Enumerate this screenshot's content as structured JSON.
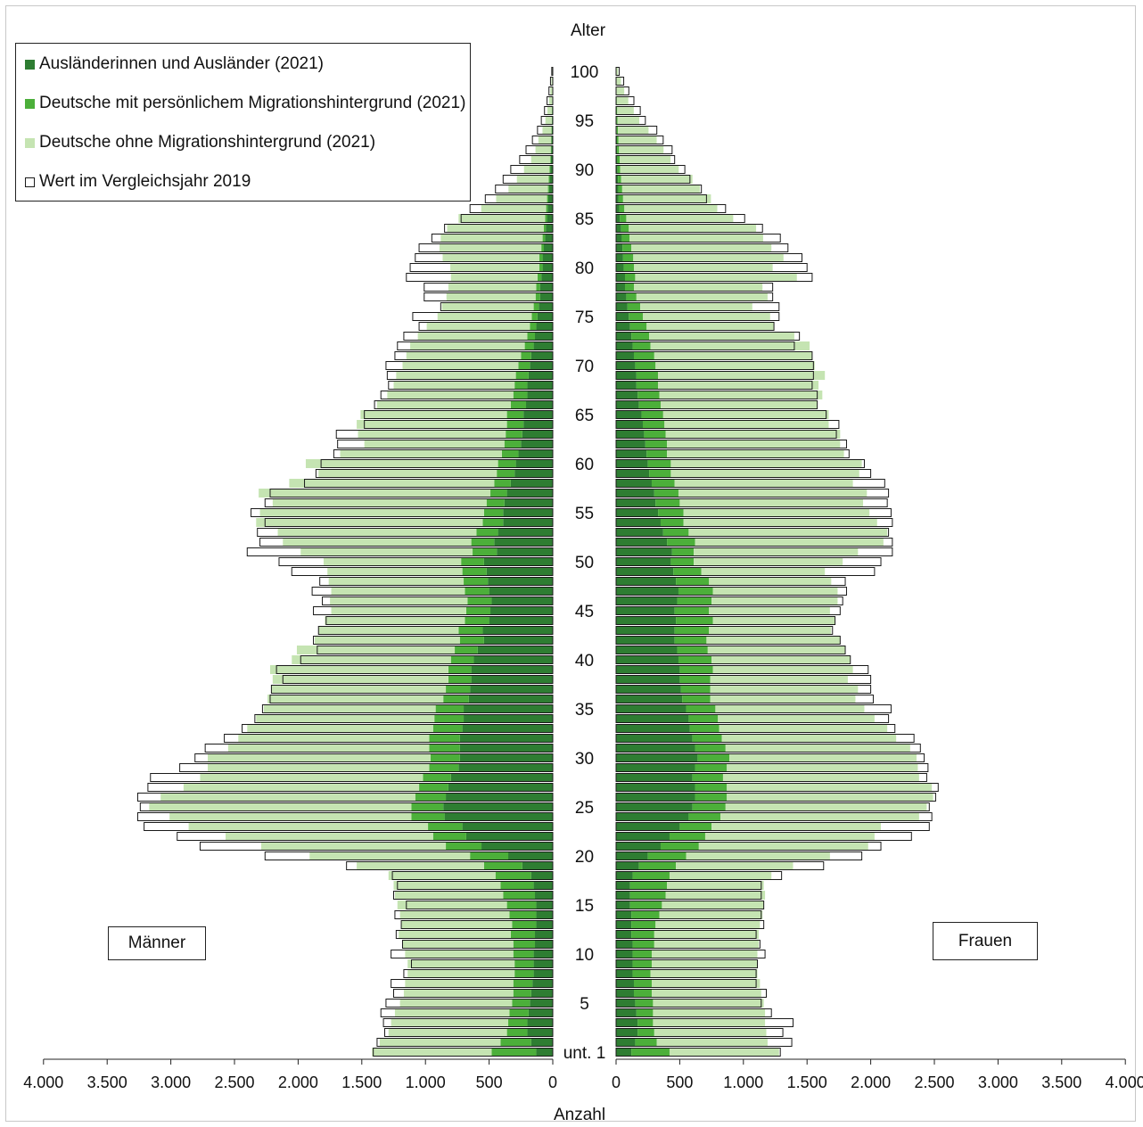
{
  "colors": {
    "auslaender": "#2e7d32",
    "deutsche_mit_mh": "#4caf3a",
    "deutsche_ohne_mh": "#c5e4b2",
    "vergleich_outline": "#1a1a1a"
  },
  "legend": [
    {
      "key": "auslaender",
      "label": "Ausländerinnen und Ausländer (2021)",
      "style": "fill"
    },
    {
      "key": "deutsche_mit_mh",
      "label": "Deutsche mit persönlichem Migrationshintergrund (2021)",
      "style": "fill"
    },
    {
      "key": "deutsche_ohne_mh",
      "label": "Deutsche ohne Migrationshintergrund (2021)",
      "style": "fill"
    },
    {
      "key": "vergleich",
      "label": "Wert im Vergleichsjahr 2019",
      "style": "outline"
    }
  ],
  "labels": {
    "men": "Männer",
    "women": "Frauen",
    "age_axis_title": "Alter",
    "count_axis_title": "Anzahl"
  },
  "chart_data": {
    "type": "bar",
    "orientation": "horizontal population pyramid",
    "y_axis": {
      "title": "Alter",
      "ticks": [
        {
          "age": 0,
          "label": "unt. 1"
        },
        {
          "age": 5,
          "label": "5"
        },
        {
          "age": 10,
          "label": "10"
        },
        {
          "age": 15,
          "label": "15"
        },
        {
          "age": 20,
          "label": "20"
        },
        {
          "age": 25,
          "label": "25"
        },
        {
          "age": 30,
          "label": "30"
        },
        {
          "age": 35,
          "label": "35"
        },
        {
          "age": 40,
          "label": "40"
        },
        {
          "age": 45,
          "label": "45"
        },
        {
          "age": 50,
          "label": "50"
        },
        {
          "age": 55,
          "label": "55"
        },
        {
          "age": 60,
          "label": "60"
        },
        {
          "age": 65,
          "label": "65"
        },
        {
          "age": 70,
          "label": "70"
        },
        {
          "age": 75,
          "label": "75"
        },
        {
          "age": 80,
          "label": "80"
        },
        {
          "age": 85,
          "label": "85"
        },
        {
          "age": 90,
          "label": "90"
        },
        {
          "age": 95,
          "label": "95"
        },
        {
          "age": 100,
          "label": "100"
        }
      ]
    },
    "x_axis": {
      "title": "Anzahl",
      "xlim": [
        0,
        4000
      ],
      "men_ticks": [
        "4.000",
        "3.500",
        "3.000",
        "2.500",
        "2.000",
        "1.500",
        "1.000",
        "500",
        "0"
      ],
      "women_ticks": [
        "0",
        "500",
        "1.000",
        "1.500",
        "2.000",
        "2.500",
        "3.000",
        "3.500",
        "4.000"
      ]
    },
    "ages": [
      0,
      1,
      2,
      3,
      4,
      5,
      6,
      7,
      8,
      9,
      10,
      11,
      12,
      13,
      14,
      15,
      16,
      17,
      18,
      19,
      20,
      21,
      22,
      23,
      24,
      25,
      26,
      27,
      28,
      29,
      30,
      31,
      32,
      33,
      34,
      35,
      36,
      37,
      38,
      39,
      40,
      41,
      42,
      43,
      44,
      45,
      46,
      47,
      48,
      49,
      50,
      51,
      52,
      53,
      54,
      55,
      56,
      57,
      58,
      59,
      60,
      61,
      62,
      63,
      64,
      65,
      66,
      67,
      68,
      69,
      70,
      71,
      72,
      73,
      74,
      75,
      76,
      77,
      78,
      79,
      80,
      81,
      82,
      83,
      84,
      85,
      86,
      87,
      88,
      89,
      90,
      91,
      92,
      93,
      94,
      95,
      96,
      97,
      98,
      99,
      100
    ],
    "men": {
      "auslaender": [
        130,
        170,
        200,
        200,
        190,
        180,
        170,
        160,
        150,
        150,
        150,
        140,
        140,
        130,
        130,
        130,
        140,
        150,
        170,
        240,
        350,
        560,
        680,
        710,
        850,
        860,
        840,
        820,
        800,
        740,
        730,
        730,
        730,
        710,
        700,
        700,
        660,
        650,
        640,
        640,
        620,
        590,
        540,
        550,
        500,
        490,
        480,
        500,
        510,
        520,
        540,
        440,
        460,
        430,
        390,
        390,
        380,
        360,
        330,
        300,
        290,
        270,
        250,
        240,
        230,
        230,
        210,
        200,
        200,
        190,
        180,
        170,
        150,
        140,
        130,
        120,
        110,
        100,
        100,
        90,
        80,
        80,
        70,
        60,
        55,
        45,
        40,
        35,
        30,
        25,
        20,
        15,
        12,
        10,
        8,
        6,
        5,
        4,
        3,
        2,
        1
      ],
      "deutsche_mit_mh": [
        350,
        240,
        160,
        150,
        150,
        140,
        140,
        150,
        150,
        150,
        160,
        170,
        190,
        190,
        210,
        230,
        250,
        260,
        280,
        300,
        300,
        280,
        260,
        270,
        260,
        250,
        240,
        230,
        220,
        230,
        230,
        240,
        240,
        230,
        230,
        220,
        200,
        190,
        180,
        180,
        180,
        180,
        190,
        190,
        190,
        190,
        190,
        190,
        190,
        190,
        180,
        190,
        180,
        170,
        160,
        150,
        140,
        130,
        130,
        140,
        140,
        130,
        130,
        130,
        130,
        130,
        120,
        110,
        100,
        100,
        90,
        80,
        70,
        60,
        50,
        45,
        40,
        35,
        30,
        30,
        25,
        25,
        20,
        20,
        15,
        15,
        12,
        10,
        8,
        7,
        6,
        5,
        4,
        3,
        3,
        2,
        2,
        1,
        1,
        1,
        0
      ],
      "deutsche_ohne_mh": [
        940,
        950,
        930,
        920,
        900,
        880,
        860,
        850,
        840,
        840,
        850,
        870,
        880,
        870,
        860,
        860,
        850,
        840,
        840,
        1000,
        1260,
        1450,
        1630,
        1880,
        1900,
        2060,
        2000,
        1850,
        1750,
        1740,
        1750,
        1580,
        1500,
        1460,
        1400,
        1350,
        1380,
        1370,
        1380,
        1400,
        1250,
        1240,
        1140,
        1100,
        1100,
        1060,
        1080,
        1050,
        1060,
        1060,
        1080,
        1350,
        1480,
        1560,
        1780,
        1760,
        1680,
        1820,
        1610,
        1400,
        1510,
        1270,
        1100,
        1160,
        1180,
        1150,
        1050,
        990,
        950,
        940,
        910,
        900,
        900,
        860,
        810,
        740,
        720,
        700,
        690,
        680,
        700,
        760,
        800,
        800,
        760,
        680,
        510,
        400,
        310,
        250,
        200,
        150,
        120,
        100,
        70,
        50,
        35,
        25,
        15,
        8,
        5
      ],
      "vergleich_2019": [
        1410,
        1380,
        1320,
        1330,
        1350,
        1310,
        1250,
        1270,
        1170,
        1110,
        1270,
        1180,
        1230,
        1190,
        1240,
        1150,
        1250,
        1220,
        1260,
        1620,
        2260,
        2770,
        2950,
        3210,
        3260,
        3240,
        3260,
        3180,
        3160,
        2930,
        2810,
        2730,
        2580,
        2440,
        2340,
        2280,
        2220,
        2210,
        2120,
        2170,
        1980,
        1850,
        1880,
        1840,
        1780,
        1880,
        1810,
        1890,
        1830,
        2050,
        2150,
        2400,
        2300,
        2320,
        2260,
        2370,
        2260,
        2220,
        1950,
        1860,
        1820,
        1720,
        1690,
        1700,
        1480,
        1480,
        1400,
        1350,
        1290,
        1300,
        1310,
        1240,
        1220,
        1170,
        1050,
        1100,
        880,
        1010,
        1010,
        1150,
        1120,
        1080,
        1050,
        950,
        850,
        720,
        650,
        530,
        450,
        390,
        330,
        260,
        210,
        160,
        120,
        90,
        65,
        45,
        30,
        18,
        8
      ]
    },
    "women": {
      "auslaender": [
        120,
        150,
        170,
        170,
        160,
        150,
        140,
        140,
        130,
        130,
        130,
        130,
        120,
        120,
        120,
        110,
        110,
        110,
        130,
        180,
        250,
        350,
        420,
        500,
        570,
        600,
        620,
        620,
        600,
        620,
        640,
        620,
        600,
        580,
        570,
        550,
        520,
        510,
        500,
        500,
        490,
        480,
        460,
        460,
        470,
        460,
        480,
        490,
        470,
        450,
        430,
        440,
        400,
        370,
        350,
        330,
        310,
        300,
        280,
        260,
        250,
        240,
        230,
        220,
        210,
        200,
        180,
        170,
        160,
        160,
        150,
        140,
        130,
        120,
        110,
        100,
        90,
        80,
        70,
        70,
        60,
        55,
        50,
        45,
        40,
        30,
        25,
        20,
        18,
        15,
        12,
        10,
        8,
        7,
        5,
        4,
        3,
        2,
        1,
        1,
        0
      ],
      "deutsche_mit_mh": [
        300,
        170,
        130,
        120,
        130,
        140,
        140,
        140,
        140,
        150,
        150,
        170,
        180,
        190,
        220,
        250,
        280,
        290,
        290,
        290,
        300,
        300,
        280,
        250,
        250,
        260,
        250,
        250,
        240,
        250,
        250,
        240,
        230,
        230,
        230,
        230,
        220,
        230,
        240,
        260,
        260,
        240,
        250,
        270,
        290,
        270,
        270,
        270,
        260,
        220,
        180,
        170,
        220,
        200,
        180,
        200,
        190,
        190,
        180,
        170,
        180,
        160,
        170,
        170,
        170,
        170,
        170,
        170,
        170,
        170,
        160,
        160,
        140,
        140,
        130,
        110,
        100,
        80,
        70,
        80,
        80,
        80,
        70,
        60,
        60,
        50,
        40,
        35,
        30,
        25,
        20,
        18,
        15,
        12,
        10,
        8,
        6,
        4,
        3,
        2,
        1
      ],
      "deutsche_ohne_mh": [
        860,
        870,
        880,
        880,
        880,
        870,
        860,
        850,
        840,
        830,
        830,
        820,
        820,
        820,
        810,
        800,
        780,
        760,
        800,
        920,
        1130,
        1330,
        1330,
        1330,
        1560,
        1580,
        1620,
        1610,
        1540,
        1500,
        1470,
        1450,
        1370,
        1320,
        1230,
        1170,
        1140,
        1160,
        1080,
        1100,
        1090,
        1080,
        1050,
        960,
        960,
        950,
        990,
        980,
        960,
        970,
        1170,
        1290,
        1480,
        1560,
        1520,
        1460,
        1440,
        1480,
        1400,
        1480,
        1500,
        1390,
        1360,
        1370,
        1290,
        1300,
        1230,
        1280,
        1260,
        1310,
        1250,
        1240,
        1250,
        1140,
        1000,
        1000,
        880,
        1030,
        1010,
        1270,
        1090,
        1180,
        1100,
        1050,
        1000,
        840,
        730,
        690,
        610,
        560,
        460,
        400,
        350,
        300,
        240,
        170,
        130,
        90,
        60,
        35,
        15
      ],
      "vergleich_2019": [
        1290,
        1380,
        1310,
        1390,
        1220,
        1140,
        1180,
        1100,
        1100,
        1110,
        1170,
        1130,
        1100,
        1160,
        1140,
        1160,
        1140,
        1140,
        1300,
        1630,
        1930,
        2080,
        2320,
        2460,
        2480,
        2460,
        2510,
        2530,
        2440,
        2450,
        2420,
        2390,
        2340,
        2190,
        2140,
        2160,
        2020,
        2000,
        2000,
        1980,
        1840,
        1800,
        1760,
        1700,
        1720,
        1760,
        1780,
        1810,
        1800,
        2030,
        2080,
        2170,
        2170,
        2140,
        2170,
        2160,
        2130,
        2140,
        2110,
        2000,
        1950,
        1830,
        1810,
        1730,
        1750,
        1650,
        1580,
        1580,
        1540,
        1550,
        1550,
        1540,
        1400,
        1440,
        1240,
        1280,
        1280,
        1230,
        1230,
        1540,
        1500,
        1460,
        1350,
        1290,
        1150,
        1010,
        860,
        710,
        670,
        580,
        540,
        460,
        440,
        370,
        320,
        230,
        190,
        140,
        100,
        60,
        25
      ]
    }
  }
}
